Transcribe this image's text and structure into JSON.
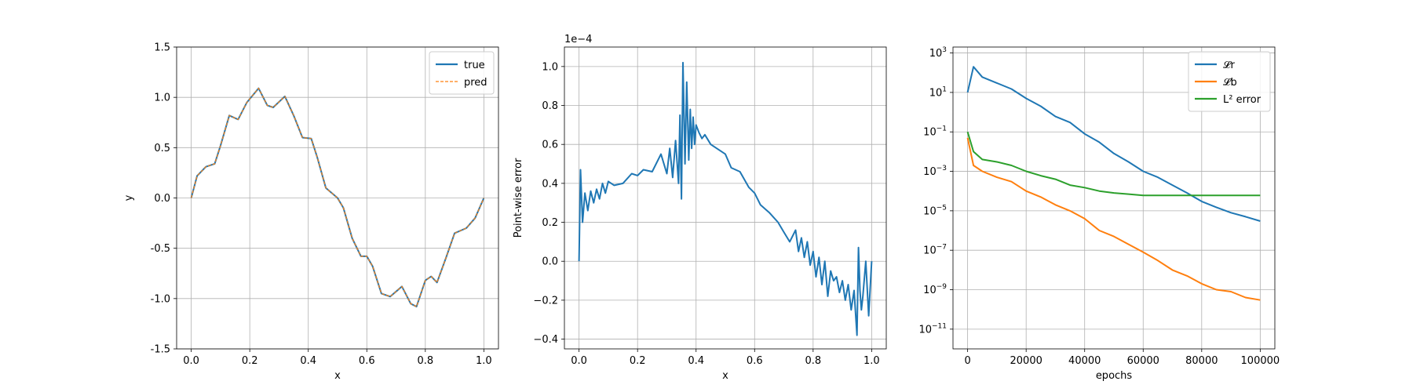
{
  "chart_data": [
    {
      "type": "line",
      "title": "",
      "xlabel": "x",
      "ylabel": "y",
      "xlim": [
        -0.05,
        1.05
      ],
      "ylim": [
        -1.5,
        1.5
      ],
      "xticks": [
        "0.0",
        "0.2",
        "0.4",
        "0.6",
        "0.8",
        "1.0"
      ],
      "yticks": [
        "-1.5",
        "-1.0",
        "-0.5",
        "0.0",
        "0.5",
        "1.0",
        "1.5"
      ],
      "grid": true,
      "legend_position": "top-right",
      "series": [
        {
          "name": "true",
          "color": "#1f77b4",
          "style": "solid",
          "x": [
            0.0,
            0.02,
            0.05,
            0.08,
            0.1,
            0.13,
            0.16,
            0.19,
            0.23,
            0.26,
            0.28,
            0.32,
            0.35,
            0.38,
            0.41,
            0.43,
            0.46,
            0.5,
            0.52,
            0.55,
            0.58,
            0.6,
            0.62,
            0.65,
            0.68,
            0.72,
            0.75,
            0.77,
            0.8,
            0.82,
            0.84,
            0.87,
            0.9,
            0.94,
            0.97,
            1.0
          ],
          "y": [
            0.0,
            0.22,
            0.31,
            0.34,
            0.52,
            0.82,
            0.78,
            0.95,
            1.09,
            0.92,
            0.9,
            1.01,
            0.82,
            0.6,
            0.59,
            0.41,
            0.1,
            0.0,
            -0.1,
            -0.4,
            -0.58,
            -0.58,
            -0.68,
            -0.95,
            -0.98,
            -0.88,
            -1.05,
            -1.08,
            -0.82,
            -0.78,
            -0.84,
            -0.6,
            -0.35,
            -0.3,
            -0.2,
            0.0
          ]
        },
        {
          "name": "pred",
          "color": "#ff7f0e",
          "style": "dashed",
          "x": [
            0.0,
            0.02,
            0.05,
            0.08,
            0.1,
            0.13,
            0.16,
            0.19,
            0.23,
            0.26,
            0.28,
            0.32,
            0.35,
            0.38,
            0.41,
            0.43,
            0.46,
            0.5,
            0.52,
            0.55,
            0.58,
            0.6,
            0.62,
            0.65,
            0.68,
            0.72,
            0.75,
            0.77,
            0.8,
            0.82,
            0.84,
            0.87,
            0.9,
            0.94,
            0.97,
            1.0
          ],
          "y": [
            0.0,
            0.22,
            0.31,
            0.34,
            0.52,
            0.82,
            0.78,
            0.95,
            1.09,
            0.92,
            0.9,
            1.01,
            0.82,
            0.6,
            0.59,
            0.41,
            0.1,
            0.0,
            -0.1,
            -0.4,
            -0.58,
            -0.58,
            -0.68,
            -0.95,
            -0.98,
            -0.88,
            -1.05,
            -1.08,
            -0.82,
            -0.78,
            -0.84,
            -0.6,
            -0.35,
            -0.3,
            -0.2,
            0.0
          ]
        }
      ]
    },
    {
      "type": "line",
      "title": "",
      "xlabel": "x",
      "ylabel": "Point-wise error",
      "offset_text": "1e−4",
      "y_scale": 0.0001,
      "xlim": [
        -0.05,
        1.05
      ],
      "ylim": [
        -0.45,
        1.1
      ],
      "xticks": [
        "0.0",
        "0.2",
        "0.4",
        "0.6",
        "0.8",
        "1.0"
      ],
      "yticks": [
        "−0.4",
        "−0.2",
        "0.0",
        "0.2",
        "0.4",
        "0.6",
        "0.8",
        "1.0"
      ],
      "grid": true,
      "series": [
        {
          "name": "",
          "color": "#1f77b4",
          "x": [
            0.0,
            0.005,
            0.012,
            0.02,
            0.03,
            0.04,
            0.05,
            0.06,
            0.07,
            0.08,
            0.09,
            0.1,
            0.12,
            0.15,
            0.18,
            0.2,
            0.22,
            0.25,
            0.28,
            0.3,
            0.31,
            0.32,
            0.33,
            0.34,
            0.345,
            0.35,
            0.355,
            0.362,
            0.368,
            0.375,
            0.38,
            0.385,
            0.39,
            0.395,
            0.4,
            0.41,
            0.42,
            0.43,
            0.45,
            0.48,
            0.5,
            0.52,
            0.55,
            0.58,
            0.6,
            0.62,
            0.65,
            0.68,
            0.7,
            0.72,
            0.74,
            0.75,
            0.76,
            0.77,
            0.78,
            0.79,
            0.8,
            0.81,
            0.82,
            0.83,
            0.84,
            0.85,
            0.86,
            0.87,
            0.88,
            0.89,
            0.9,
            0.91,
            0.92,
            0.93,
            0.94,
            0.95,
            0.955,
            0.96,
            0.965,
            0.97,
            0.98,
            0.99,
            1.0
          ],
          "y": [
            0.0,
            0.47,
            0.2,
            0.35,
            0.26,
            0.36,
            0.3,
            0.37,
            0.32,
            0.4,
            0.35,
            0.41,
            0.39,
            0.4,
            0.45,
            0.44,
            0.47,
            0.46,
            0.55,
            0.45,
            0.58,
            0.43,
            0.62,
            0.4,
            0.75,
            0.32,
            1.02,
            0.5,
            0.92,
            0.52,
            0.78,
            0.58,
            0.74,
            0.6,
            0.7,
            0.66,
            0.63,
            0.65,
            0.6,
            0.57,
            0.55,
            0.48,
            0.46,
            0.38,
            0.35,
            0.29,
            0.25,
            0.2,
            0.15,
            0.1,
            0.16,
            0.05,
            0.12,
            0.02,
            0.1,
            -0.02,
            0.05,
            -0.08,
            0.02,
            -0.12,
            0.0,
            -0.18,
            -0.05,
            -0.1,
            -0.08,
            -0.16,
            -0.1,
            -0.2,
            -0.12,
            -0.25,
            -0.15,
            -0.38,
            0.07,
            -0.15,
            -0.25,
            -0.18,
            0.0,
            -0.28,
            0.0
          ]
        }
      ]
    },
    {
      "type": "line",
      "title": "",
      "xlabel": "epochs",
      "ylabel": "",
      "y_scale_type": "log",
      "xlim": [
        -5000,
        105000
      ],
      "ylim": [
        1e-12,
        2000
      ],
      "xticks": [
        "0",
        "20000",
        "40000",
        "60000",
        "80000",
        "100000"
      ],
      "yticks": [
        "10^3",
        "10^1",
        "10^-1",
        "10^-3",
        "10^-5",
        "10^-7",
        "10^-9",
        "10^-11"
      ],
      "grid": true,
      "legend_position": "top-right",
      "series": [
        {
          "name": "𝓛r",
          "color": "#1f77b4",
          "x": [
            0,
            2000,
            5000,
            10000,
            15000,
            20000,
            25000,
            30000,
            35000,
            40000,
            45000,
            50000,
            55000,
            60000,
            65000,
            70000,
            75000,
            80000,
            85000,
            90000,
            95000,
            100000
          ],
          "y": [
            10,
            200,
            60,
            30,
            15,
            5,
            2,
            0.6,
            0.3,
            0.08,
            0.03,
            0.008,
            0.003,
            0.001,
            0.0005,
            0.0002,
            8e-05,
            3e-05,
            1.5e-05,
            8e-06,
            5e-06,
            3e-06
          ]
        },
        {
          "name": "𝓛b",
          "color": "#ff7f0e",
          "x": [
            0,
            2000,
            5000,
            10000,
            15000,
            20000,
            25000,
            30000,
            35000,
            40000,
            45000,
            50000,
            55000,
            60000,
            65000,
            70000,
            75000,
            80000,
            85000,
            90000,
            95000,
            100000
          ],
          "y": [
            0.05,
            0.002,
            0.001,
            0.0005,
            0.0003,
            0.0001,
            5e-05,
            2e-05,
            1e-05,
            4e-06,
            1e-06,
            5e-07,
            2e-07,
            8e-08,
            3e-08,
            1e-08,
            5e-09,
            2e-09,
            1e-09,
            8e-10,
            4e-10,
            3e-10
          ]
        },
        {
          "name": "L² error",
          "color": "#2ca02c",
          "x": [
            0,
            2000,
            5000,
            10000,
            15000,
            20000,
            25000,
            30000,
            35000,
            40000,
            45000,
            50000,
            55000,
            60000,
            65000,
            70000,
            75000,
            80000,
            85000,
            90000,
            95000,
            100000
          ],
          "y": [
            0.1,
            0.01,
            0.004,
            0.003,
            0.002,
            0.001,
            0.0006,
            0.0004,
            0.0002,
            0.00015,
            0.0001,
            8e-05,
            7e-05,
            6e-05,
            6e-05,
            6e-05,
            6e-05,
            6e-05,
            6e-05,
            6e-05,
            6e-05,
            6e-05
          ]
        }
      ]
    }
  ]
}
